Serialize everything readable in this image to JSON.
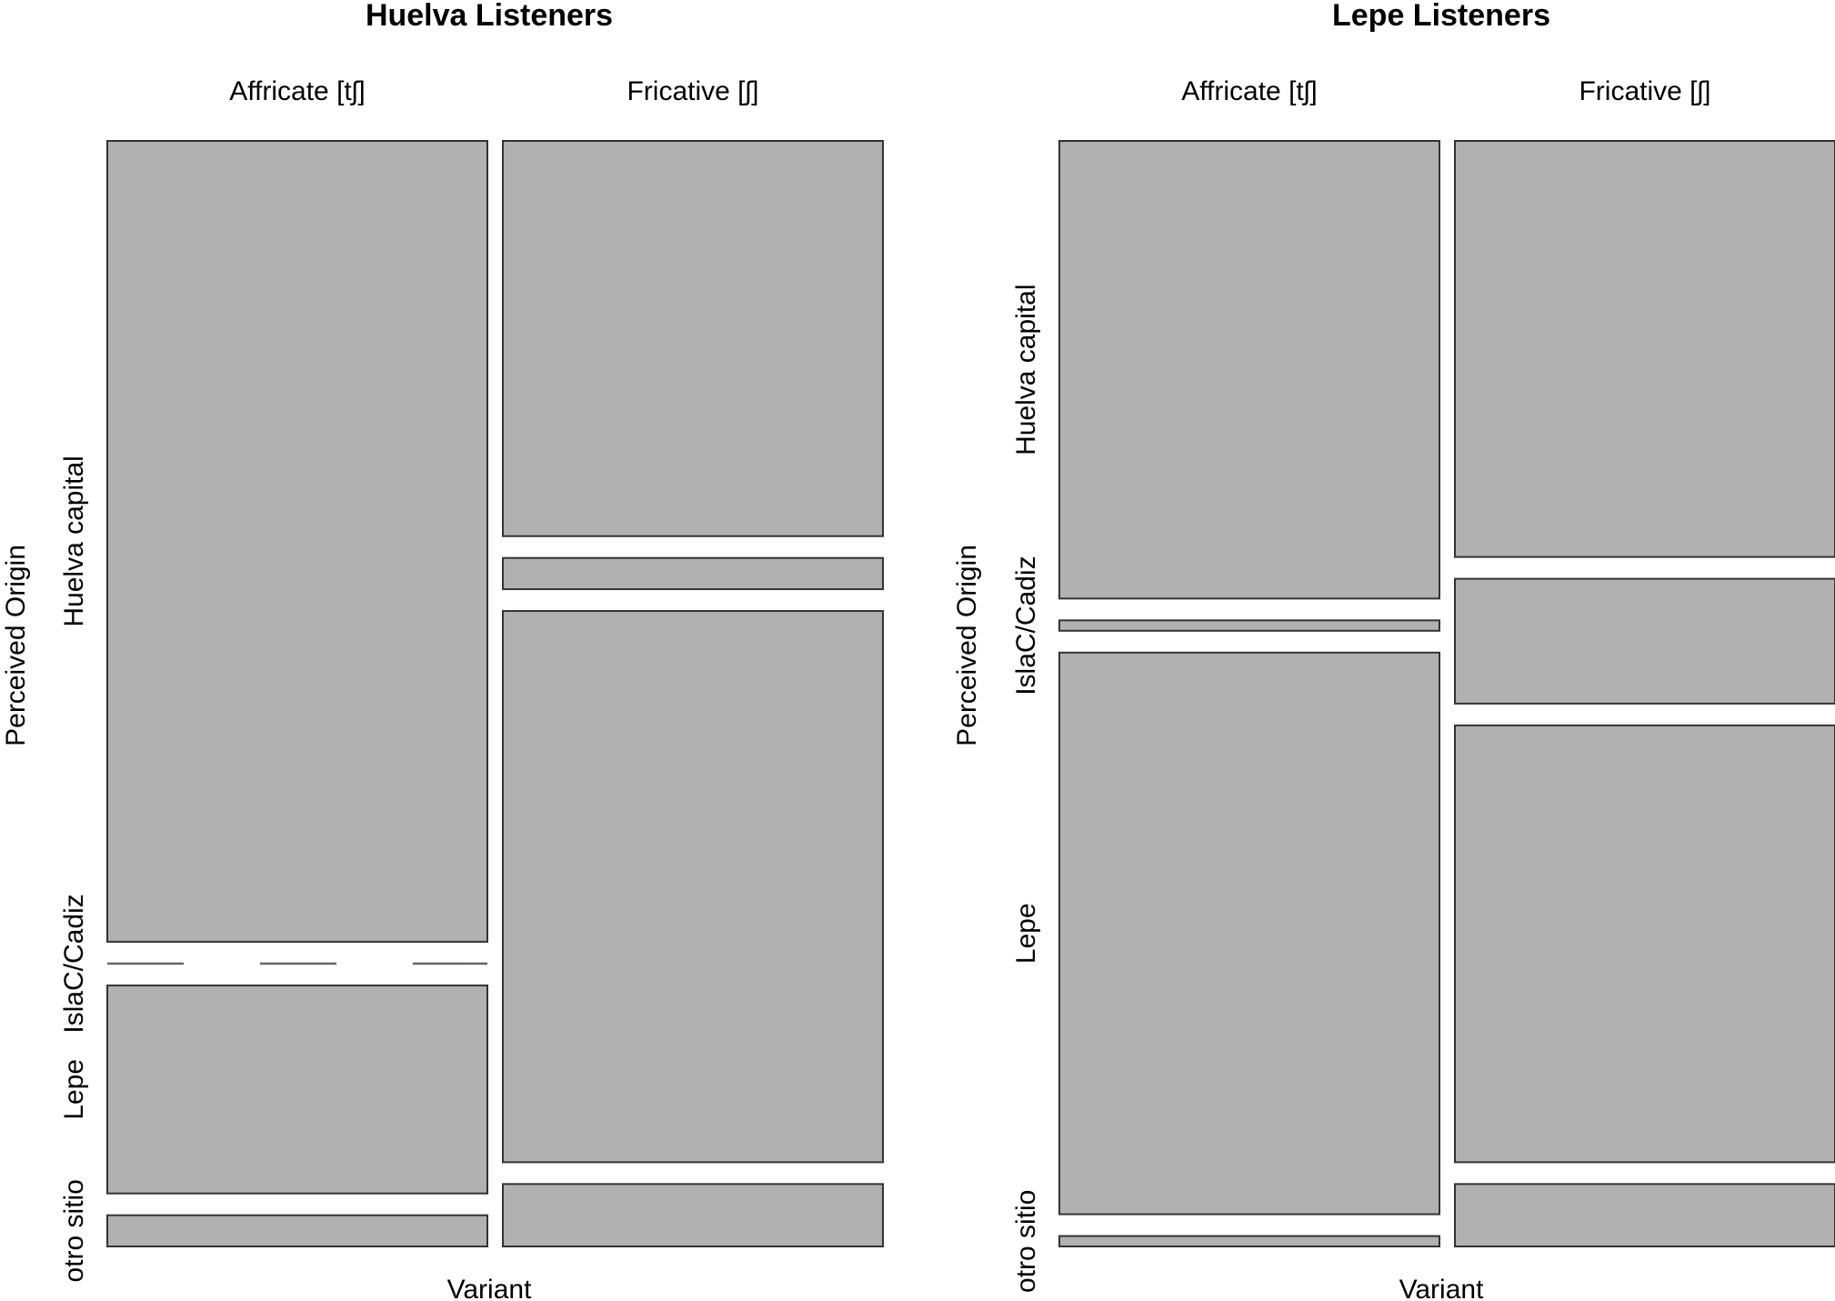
{
  "chart_data": [
    {
      "type": "mosaic",
      "title": "Huelva Listeners",
      "xlabel": "Variant",
      "ylabel": "Perceived Origin",
      "columns": [
        "Affricate [tʃ]",
        "Fricative [ʃ]"
      ],
      "rows": [
        "Huelva capital",
        "IslaC/Cadiz",
        "Lepe",
        "otro sitio"
      ],
      "column_proportions": [
        0.5,
        0.5
      ],
      "cells": [
        [
          0.77,
          0.0,
          0.2,
          0.03
        ],
        [
          0.38,
          0.03,
          0.53,
          0.06
        ]
      ]
    },
    {
      "type": "mosaic",
      "title": "Lepe Listeners",
      "xlabel": "Variant",
      "ylabel": "Perceived Origin",
      "columns": [
        "Affricate [tʃ]",
        "Fricative [ʃ]"
      ],
      "rows": [
        "Huelva capital",
        "IslaC/Cadiz",
        "Lepe",
        "otro sitio"
      ],
      "column_proportions": [
        0.5,
        0.5
      ],
      "cells": [
        [
          0.44,
          0.01,
          0.54,
          0.01
        ],
        [
          0.4,
          0.12,
          0.42,
          0.06
        ]
      ]
    }
  ]
}
